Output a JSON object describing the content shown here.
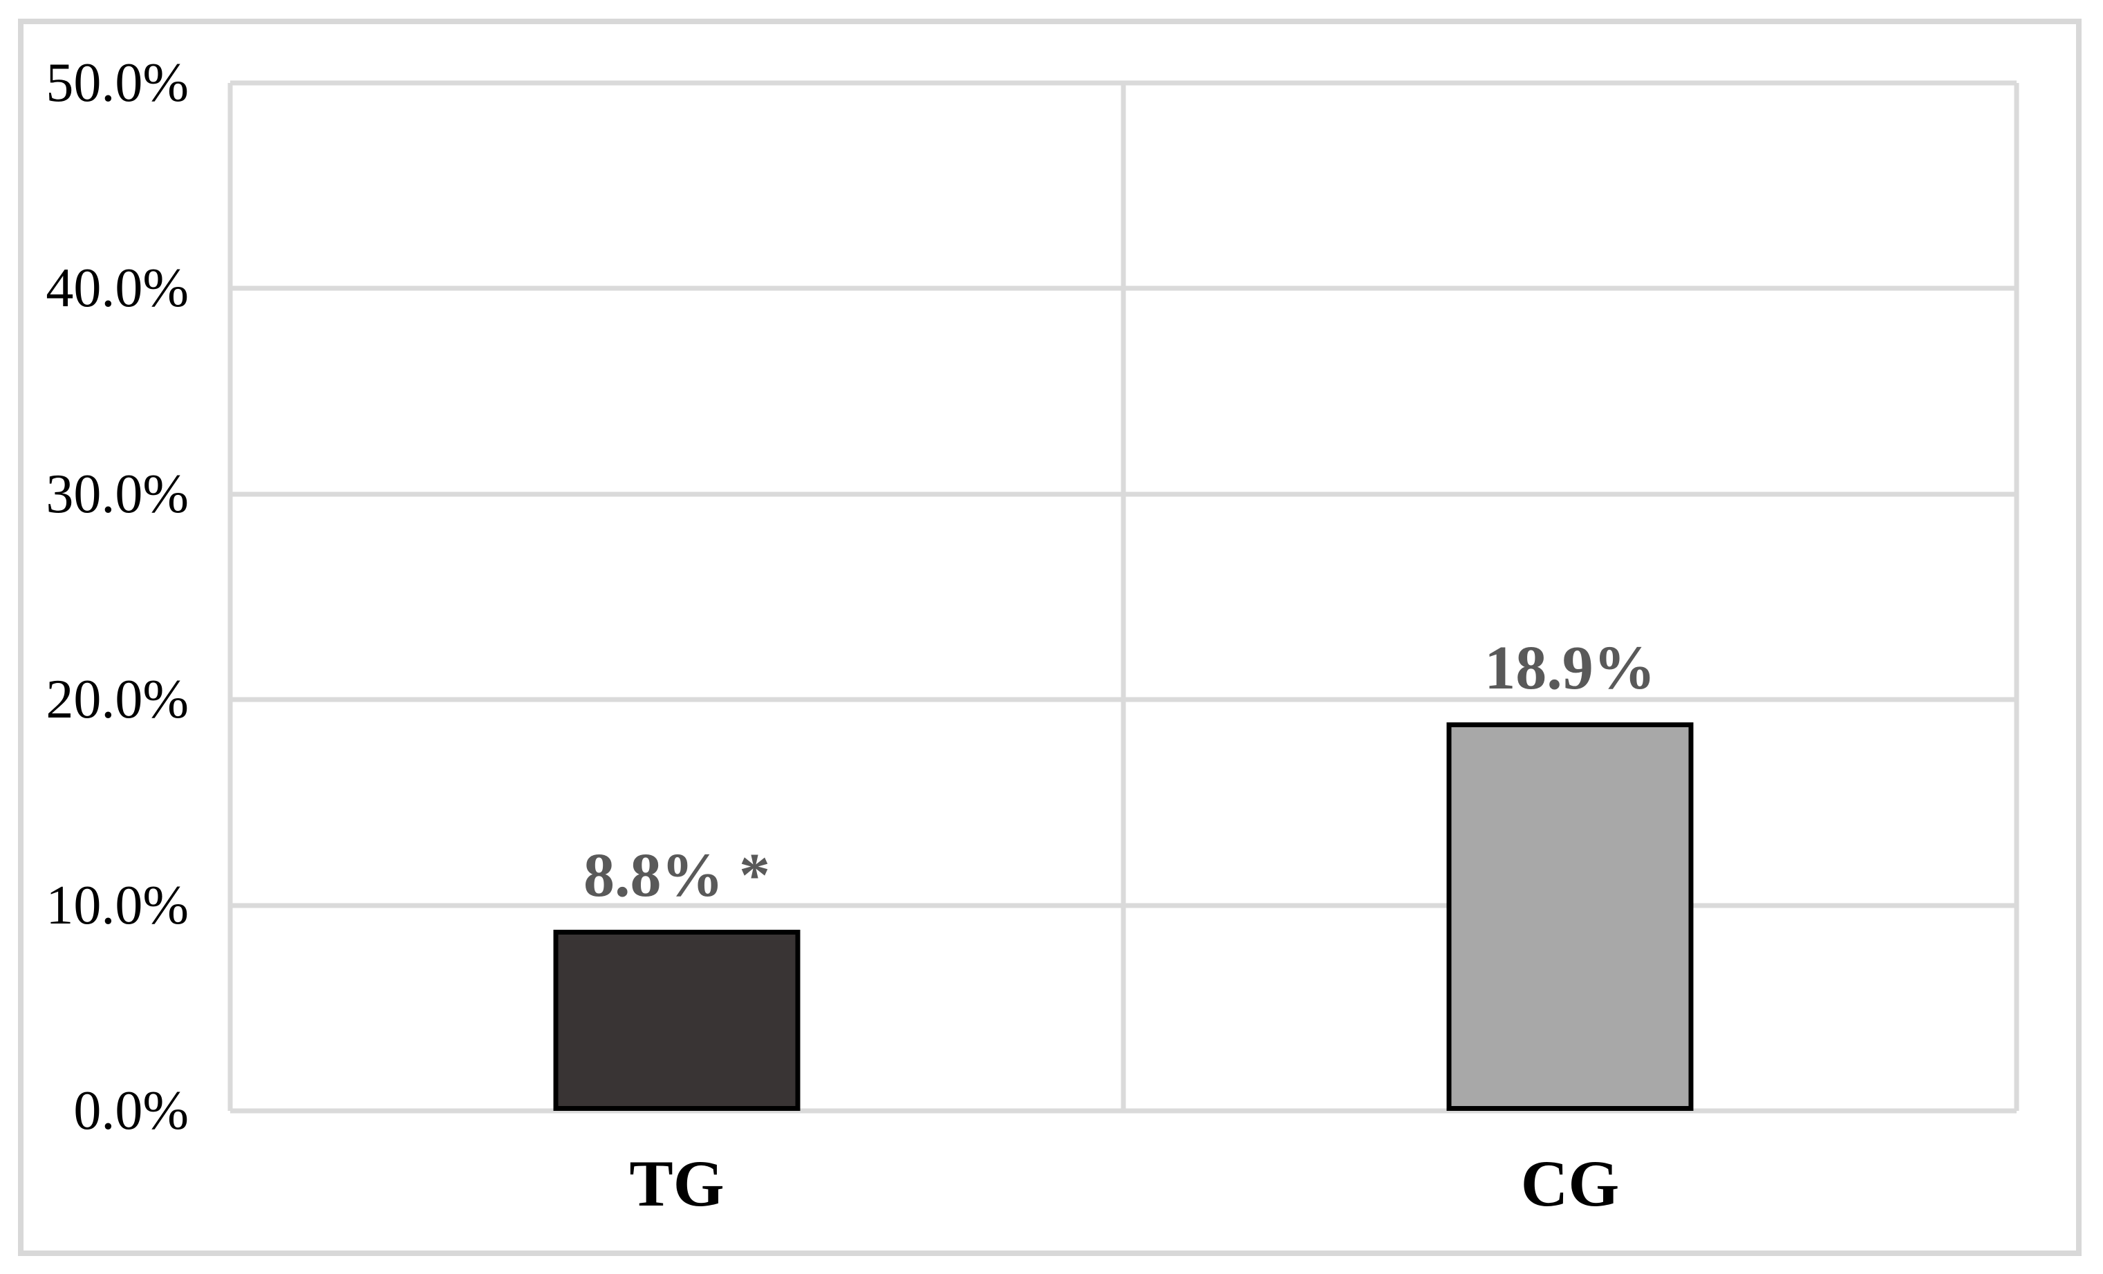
{
  "figure": {
    "background_color": "#FFFFFF",
    "outer_border_color": "#D8D8D8"
  },
  "chart_data": {
    "type": "bar",
    "categories": [
      "TG",
      "CG"
    ],
    "values": [
      8.8,
      18.9
    ],
    "data_labels": [
      "8.8% *",
      "18.9%"
    ],
    "series_colors": [
      "#393434",
      "#A8A8A8"
    ],
    "bar_border_color": "#000000",
    "data_label_color": "#595959",
    "ylim": [
      0,
      50
    ],
    "yticks": [
      0,
      10,
      20,
      30,
      40,
      50
    ],
    "ytick_labels": [
      "0.0%",
      "10.0%",
      "20.0%",
      "30.0%",
      "40.0%",
      "50.0%"
    ],
    "grid": true,
    "gridline_color": "#DADADA",
    "legend_position": "none"
  }
}
